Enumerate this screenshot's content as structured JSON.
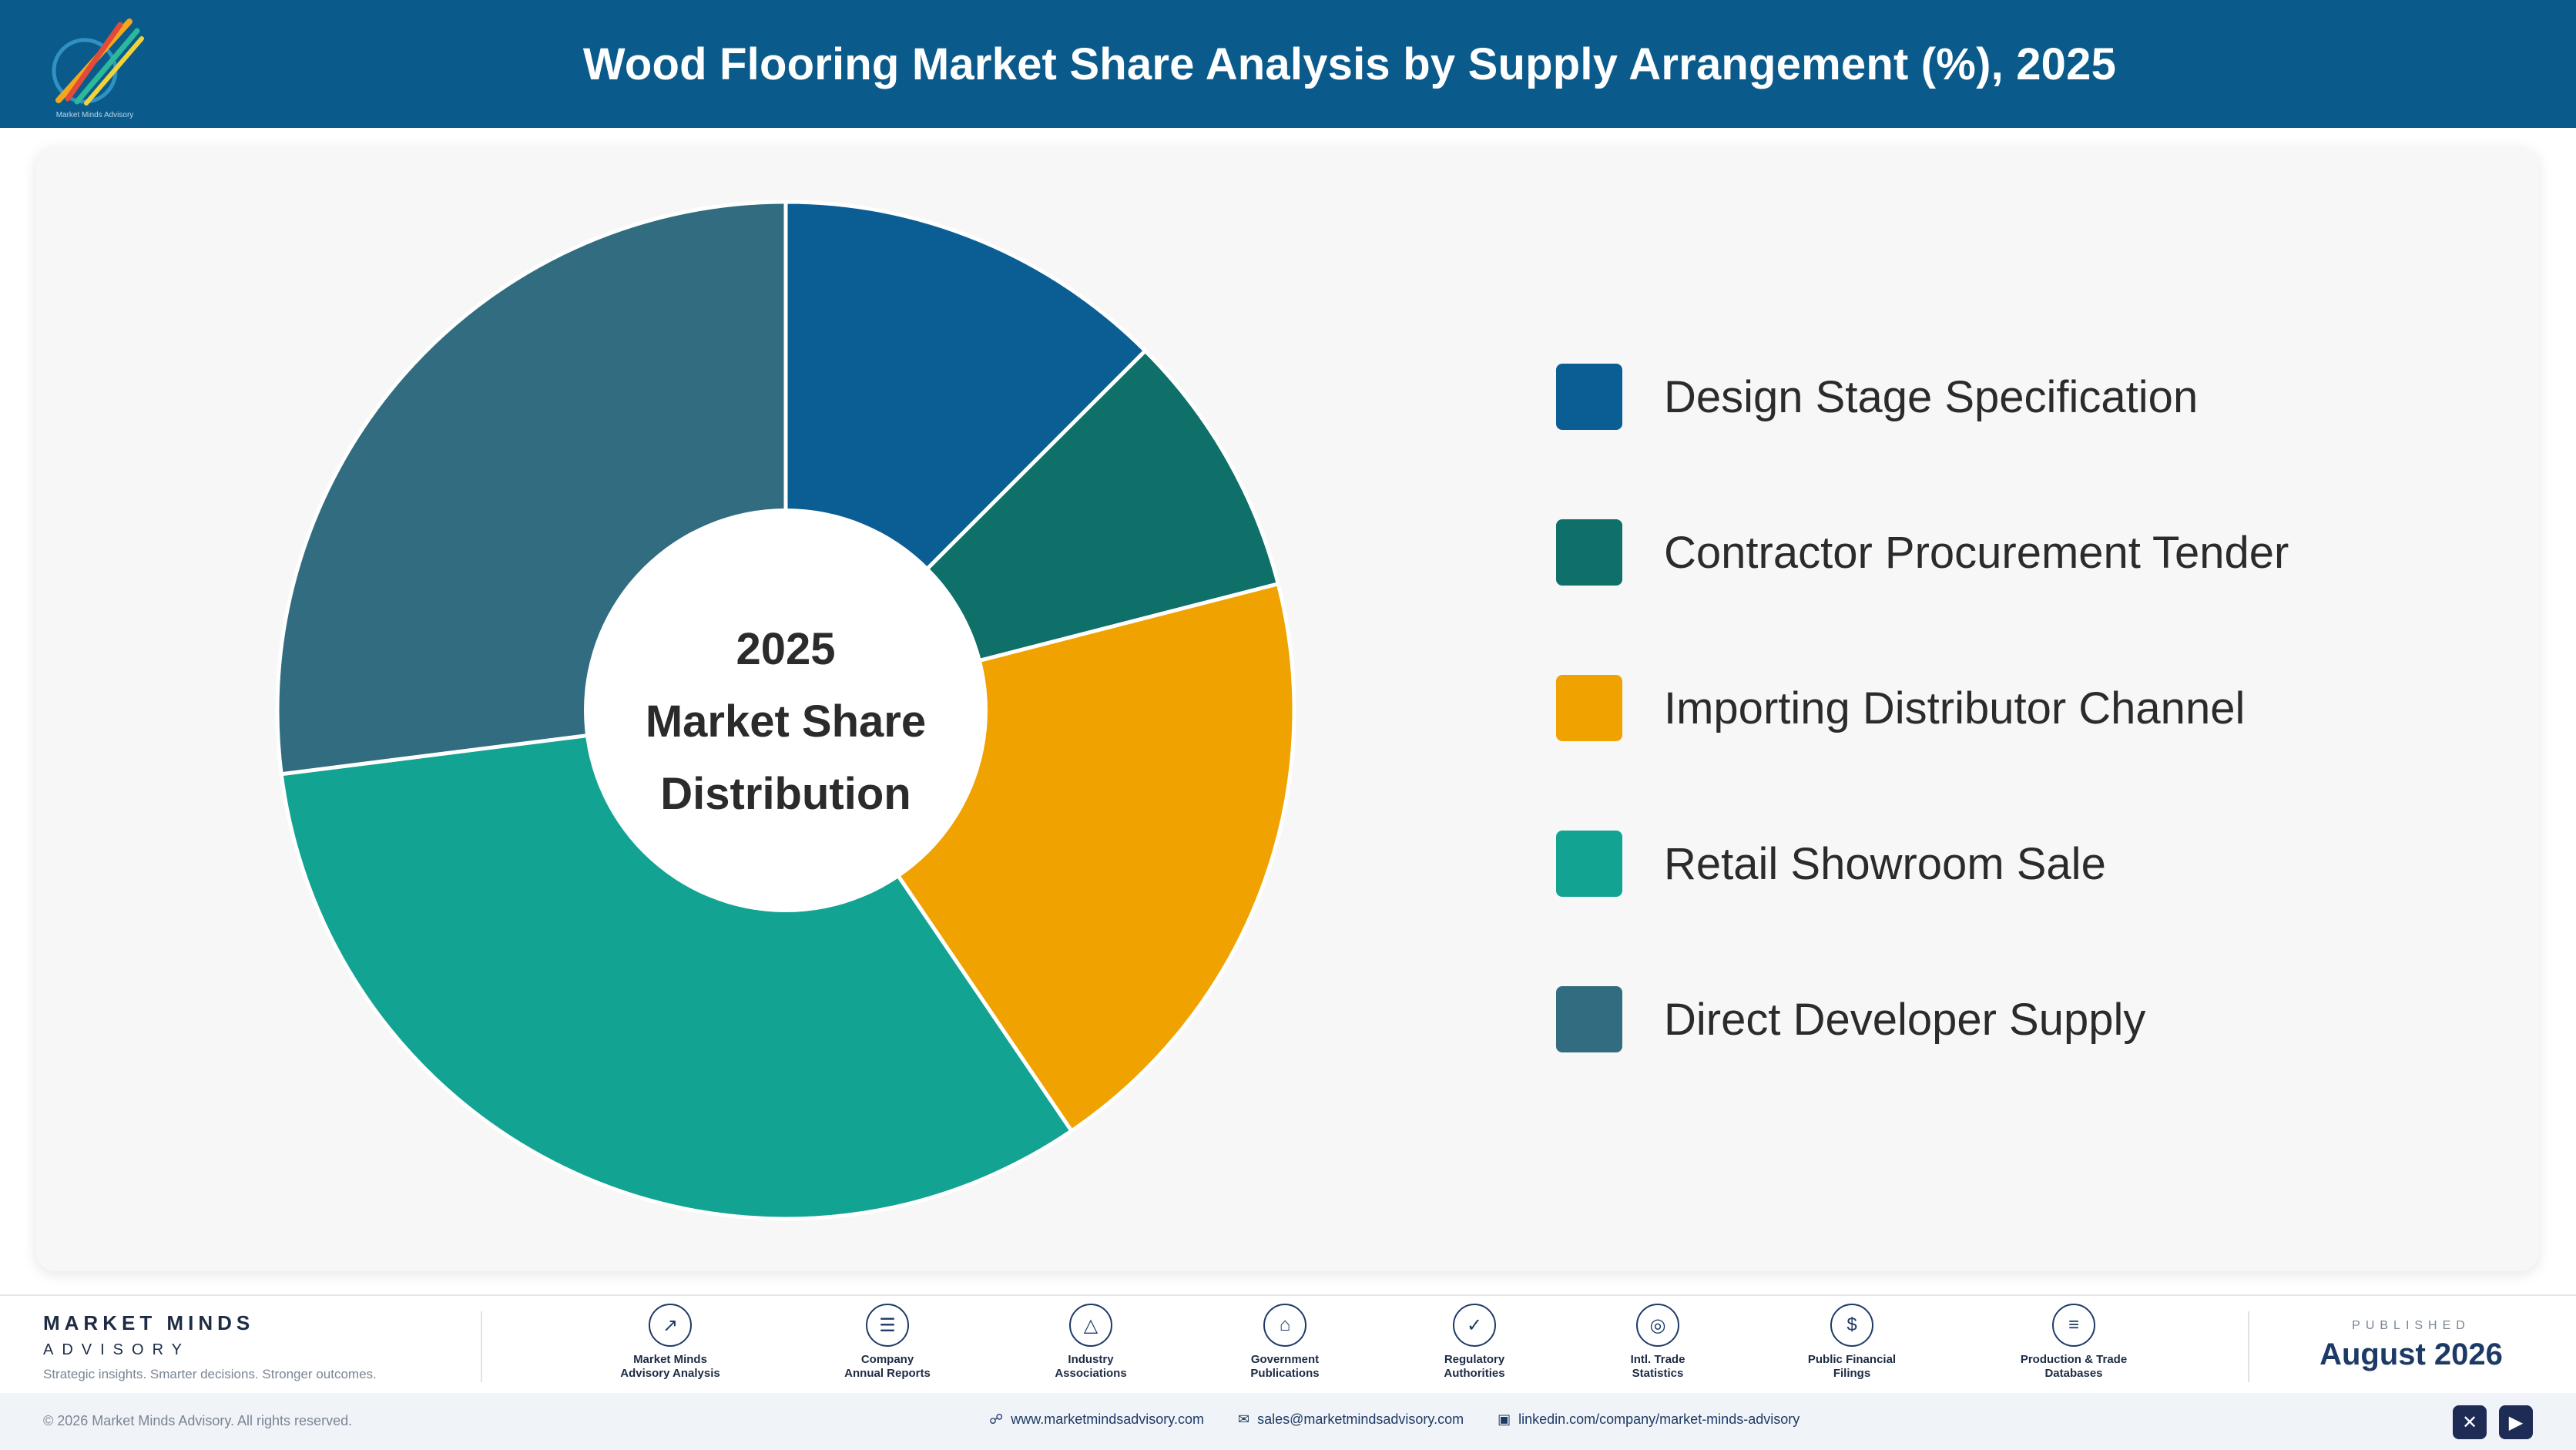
{
  "header": {
    "title": "Wood Flooring Market Share Analysis by Supply Arrangement (%), 2025",
    "logo_text": "Market Minds Advisory"
  },
  "chart_data": {
    "type": "pie",
    "title": "Wood Flooring Market Share Analysis by Supply Arrangement (%), 2025",
    "center_label": [
      "2025",
      "Market Share",
      "Distribution"
    ],
    "categories": [
      "Design Stage Specification",
      "Contractor Procurement Tender",
      "Importing Distributor Channel",
      "Retail Showroom Sale",
      "Direct Developer Supply"
    ],
    "values": [
      12.5,
      8.5,
      19.5,
      32.5,
      27.0
    ],
    "colors": [
      "#0b5e94",
      "#0e7068",
      "#f0a300",
      "#13a393",
      "#316c80"
    ],
    "donut": true,
    "legend_position": "right"
  },
  "footer": {
    "brand_name": "MARKET MINDS",
    "brand_sub": "ADVISORY",
    "tagline": "Strategic insights. Smarter decisions. Stronger outcomes.",
    "sources": [
      {
        "icon": "chart-line-icon",
        "line1": "Market Minds",
        "line2": "Advisory Analysis"
      },
      {
        "icon": "document-icon",
        "line1": "Company",
        "line2": "Annual Reports"
      },
      {
        "icon": "network-icon",
        "line1": "Industry",
        "line2": "Associations"
      },
      {
        "icon": "building-icon",
        "line1": "Government",
        "line2": "Publications"
      },
      {
        "icon": "shield-check-icon",
        "line1": "Regulatory",
        "line2": "Authorities"
      },
      {
        "icon": "globe-icon",
        "line1": "Intl. Trade",
        "line2": "Statistics"
      },
      {
        "icon": "coin-icon",
        "line1": "Public Financial",
        "line2": "Filings"
      },
      {
        "icon": "database-icon",
        "line1": "Production & Trade",
        "line2": "Databases"
      }
    ],
    "published_label": "PUBLISHED",
    "published_date": "August 2026",
    "copyright": "© 2026 Market Minds Advisory. All rights reserved.",
    "website": "www.marketmindsadvisory.com",
    "email": "sales@marketmindsadvisory.com",
    "linkedin": "linkedin.com/company/market-minds-advisory"
  }
}
